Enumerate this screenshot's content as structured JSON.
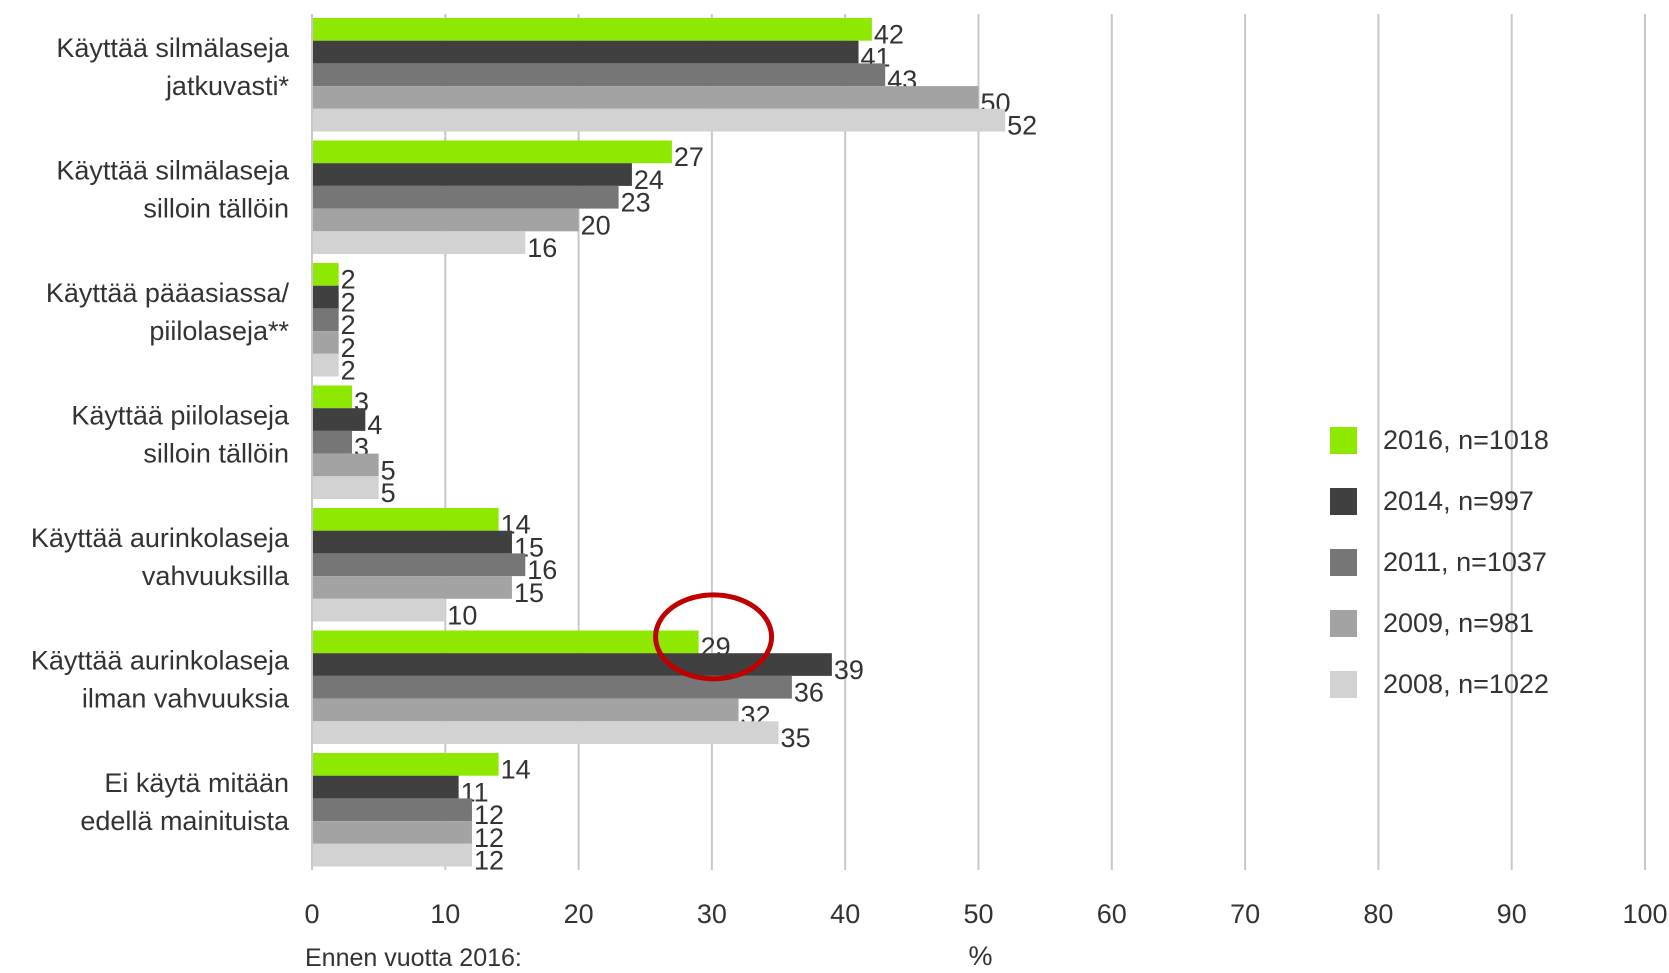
{
  "chart_data": {
    "type": "bar",
    "orientation": "horizontal",
    "categories": [
      [
        "Käyttää silmälaseja",
        "jatkuvasti*"
      ],
      [
        "Käyttää silmälaseja",
        "silloin tällöin"
      ],
      [
        "Käyttää pääasiassa/",
        "piilolaseja**"
      ],
      [
        "Käyttää piilolaseja",
        "silloin tällöin"
      ],
      [
        "Käyttää aurinkolaseja",
        "vahvuuksilla"
      ],
      [
        "Käyttää aurinkolaseja",
        "ilman vahvuuksia"
      ],
      [
        "Ei käytä mitään",
        "edellä mainituista"
      ]
    ],
    "series": [
      {
        "name": "2016, n=1018",
        "color": "#8ee800",
        "values": [
          42,
          27,
          2,
          3,
          14,
          29,
          14
        ]
      },
      {
        "name": "2014, n=997",
        "color": "#404040",
        "values": [
          41,
          24,
          2,
          4,
          15,
          39,
          11
        ]
      },
      {
        "name": "2011, n=1037",
        "color": "#767676",
        "values": [
          43,
          23,
          2,
          3,
          16,
          36,
          12
        ]
      },
      {
        "name": "2009, n=981",
        "color": "#a3a3a3",
        "values": [
          50,
          20,
          2,
          5,
          15,
          32,
          12
        ]
      },
      {
        "name": "2008, n=1022",
        "color": "#d2d2d2",
        "values": [
          52,
          16,
          2,
          5,
          10,
          35,
          12
        ]
      }
    ],
    "xlim": [
      0,
      100
    ],
    "xticks": [
      0,
      10,
      20,
      30,
      40,
      50,
      60,
      70,
      80,
      90,
      100
    ],
    "xlabel": "%",
    "grid": true,
    "legend_position": "right",
    "highlight": {
      "series": 0,
      "category": 5,
      "color": "#c00000"
    }
  },
  "footnote": "Ennen vuotta 2016:"
}
